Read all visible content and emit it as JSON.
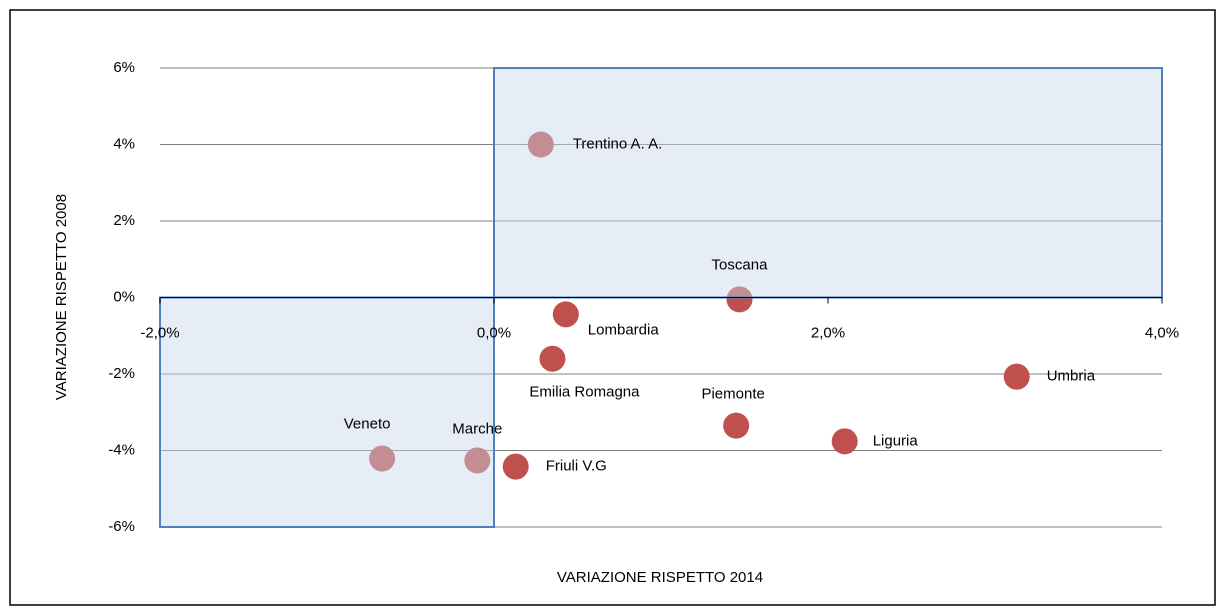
{
  "chart_data": {
    "type": "scatter",
    "xlabel": "VARIAZIONE RISPETTO 2014",
    "ylabel": "VARIAZIONE RISPETTO 2008",
    "labels": [
      "Trentino A. A.",
      "Toscana",
      "Lombardia",
      "Emilia Romagna",
      "Umbria",
      "Piemonte",
      "Liguria",
      "Veneto",
      "Marche",
      "Friuli V.G"
    ],
    "x": [
      0.28,
      1.47,
      0.43,
      0.35,
      3.13,
      1.45,
      2.1,
      -0.67,
      -0.1,
      0.13
    ],
    "values": [
      4.0,
      -0.05,
      -0.44,
      -1.6,
      -2.07,
      -3.35,
      -3.76,
      -4.21,
      -4.26,
      -4.42
    ],
    "color": "#c0504d",
    "xlim": [
      -2,
      4
    ],
    "xticks": [
      {
        "value": -2,
        "label": "-2,0%"
      },
      {
        "value": 0,
        "label": "0,0%"
      },
      {
        "value": 2,
        "label": "2,0%"
      },
      {
        "value": 4,
        "label": "4,0%"
      }
    ],
    "ylim": [
      -6,
      6
    ],
    "yticks": [
      {
        "value": -6,
        "label": "-6%"
      },
      {
        "value": -4,
        "label": "-4%"
      },
      {
        "value": -2,
        "label": "-2%"
      },
      {
        "value": 0,
        "label": "0%"
      },
      {
        "value": 2,
        "label": "2%"
      },
      {
        "value": 4,
        "label": "4%"
      },
      {
        "value": 6,
        "label": "6%"
      }
    ],
    "grid": true
  }
}
